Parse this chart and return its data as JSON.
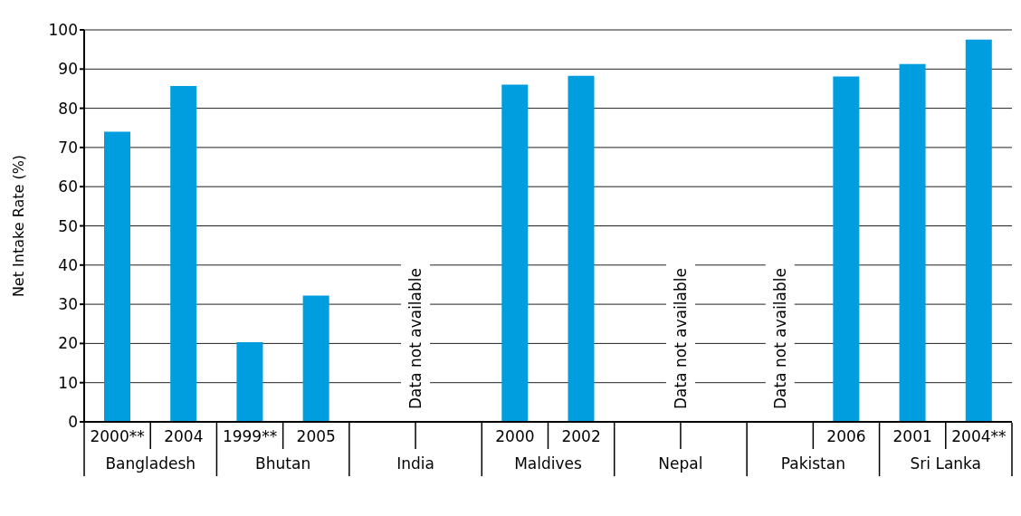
{
  "chart_data": {
    "type": "bar",
    "ylabel": "Net Intake Rate (%)",
    "categories": [
      "2000**",
      "2004",
      "1999**",
      "2005",
      null,
      null,
      "2000",
      "2002",
      null,
      null,
      null,
      "2006",
      "2001",
      "2004**"
    ],
    "values": [
      74,
      85.7,
      20.3,
      32.2,
      null,
      null,
      86,
      88.3,
      null,
      null,
      null,
      88.1,
      91.3,
      97.5
    ],
    "color": "#009ddf",
    "ylim": [
      0,
      100
    ],
    "yticks": [
      0,
      10,
      20,
      30,
      40,
      50,
      60,
      70,
      80,
      90,
      100
    ],
    "grid": "y",
    "annotations": [
      "Bangladesh",
      "Bhutan",
      "India",
      "Maldives",
      "Nepal",
      "Pakistan",
      "Sri Lanka",
      "Data not available",
      "Data not available",
      "Data not available"
    ]
  }
}
